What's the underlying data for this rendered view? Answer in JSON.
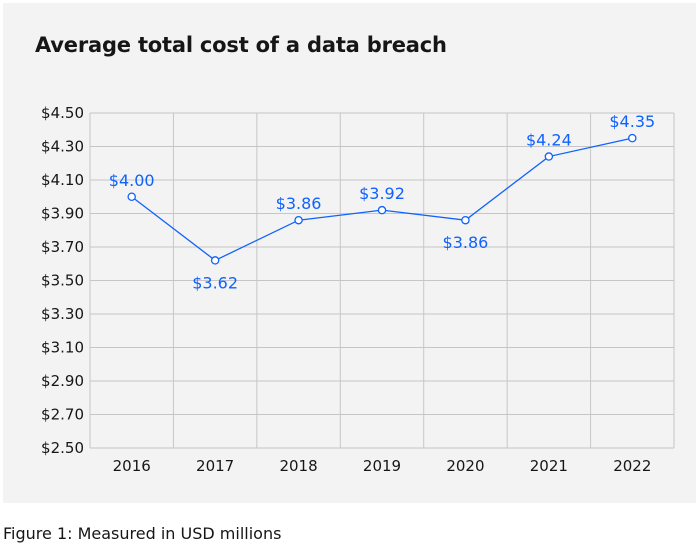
{
  "chart_data": {
    "type": "line",
    "title": "Average total cost of a data breach",
    "caption": "Figure 1: Measured in USD millions",
    "xlabel": "",
    "ylabel": "",
    "x": [
      "2016",
      "2017",
      "2018",
      "2019",
      "2020",
      "2021",
      "2022"
    ],
    "series": [
      {
        "name": "Average total cost",
        "values": [
          4.0,
          3.62,
          3.86,
          3.92,
          3.86,
          4.24,
          4.35
        ],
        "data_labels": [
          "$4.00",
          "$3.62",
          "$3.86",
          "$3.92",
          "$3.86",
          "$4.24",
          "$4.35"
        ],
        "label_position": [
          "above",
          "below",
          "above",
          "above",
          "below",
          "above",
          "above"
        ]
      }
    ],
    "ylim": [
      2.5,
      4.5
    ],
    "yticks": [
      2.5,
      2.7,
      2.9,
      3.1,
      3.3,
      3.5,
      3.7,
      3.9,
      4.1,
      4.3,
      4.5
    ],
    "ytick_labels": [
      "$2.50",
      "$2.70",
      "$2.90",
      "$3.10",
      "$3.30",
      "$3.50",
      "$3.70",
      "$3.90",
      "$4.10",
      "$4.30",
      "$4.50"
    ],
    "grid": true,
    "colors": {
      "line": "#0f62fe",
      "marker_fill": "#ffffff",
      "grid": "#c6c6c6",
      "background": "#f3f3f3"
    }
  }
}
